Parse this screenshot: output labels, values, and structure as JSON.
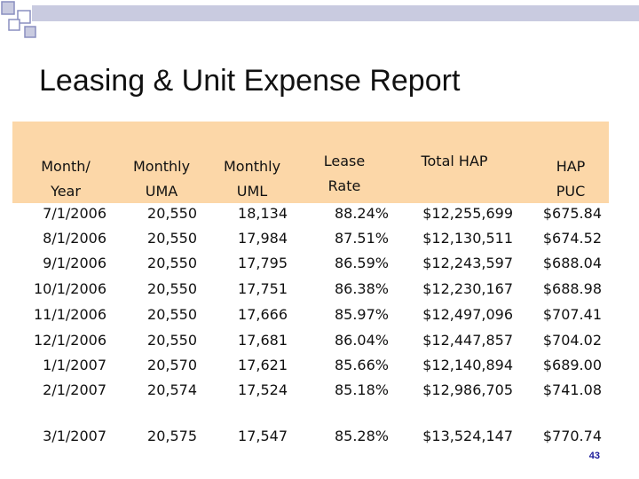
{
  "slide": {
    "title": "Leasing & Unit Expense Report",
    "page_number": "43",
    "colors": {
      "header_band": "#fcd7a8",
      "decor_line": "#c9cbe0",
      "decor_square_fill": "#c9cbe0",
      "decor_square_border": "#8a8fc0",
      "page_number": "#1a1a99"
    }
  },
  "table": {
    "headers": {
      "month": [
        "Month/",
        "Year"
      ],
      "uma": [
        "Monthly",
        "UMA"
      ],
      "uml": [
        "Monthly",
        "UML"
      ],
      "rate": [
        "Lease",
        "Rate"
      ],
      "total_hap": [
        "Total HAP"
      ],
      "hap_puc": [
        "HAP",
        "PUC"
      ]
    },
    "rows": [
      {
        "month": "7/1/2006",
        "uma": "20,550",
        "uml": "18,134",
        "rate": "88.24%",
        "total_hap": "$12,255,699",
        "hap_puc": "$675.84"
      },
      {
        "month": "8/1/2006",
        "uma": "20,550",
        "uml": "17,984",
        "rate": "87.51%",
        "total_hap": "$12,130,511",
        "hap_puc": "$674.52"
      },
      {
        "month": "9/1/2006",
        "uma": "20,550",
        "uml": "17,795",
        "rate": "86.59%",
        "total_hap": "$12,243,597",
        "hap_puc": "$688.04"
      },
      {
        "month": "10/1/2006",
        "uma": "20,550",
        "uml": "17,751",
        "rate": "86.38%",
        "total_hap": "$12,230,167",
        "hap_puc": "$688.98"
      },
      {
        "month": "11/1/2006",
        "uma": "20,550",
        "uml": "17,666",
        "rate": "85.97%",
        "total_hap": "$12,497,096",
        "hap_puc": "$707.41"
      },
      {
        "month": "12/1/2006",
        "uma": "20,550",
        "uml": "17,681",
        "rate": "86.04%",
        "total_hap": "$12,447,857",
        "hap_puc": "$704.02"
      },
      {
        "month": "1/1/2007",
        "uma": "20,570",
        "uml": "17,621",
        "rate": "85.66%",
        "total_hap": "$12,140,894",
        "hap_puc": "$689.00"
      },
      {
        "month": "2/1/2007",
        "uma": "20,574",
        "uml": "17,524",
        "rate": "85.18%",
        "total_hap": "$12,986,705",
        "hap_puc": "$741.08"
      },
      {
        "month": "3/1/2007",
        "uma": "20,575",
        "uml": "17,547",
        "rate": "85.28%",
        "total_hap": "$13,524,147",
        "hap_puc": "$770.74"
      }
    ]
  }
}
